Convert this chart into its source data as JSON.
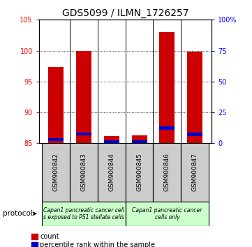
{
  "title": "GDS5099 / ILMN_1726257",
  "samples": [
    "GSM900842",
    "GSM900843",
    "GSM900844",
    "GSM900845",
    "GSM900846",
    "GSM900847"
  ],
  "count_values": [
    97.4,
    100.0,
    86.2,
    86.3,
    103.0,
    99.8
  ],
  "percentile_values": [
    85.6,
    86.5,
    85.2,
    85.2,
    87.5,
    86.4
  ],
  "ylim": [
    85,
    105
  ],
  "yticks": [
    85,
    90,
    95,
    100,
    105
  ],
  "right_yticks": [
    0,
    25,
    50,
    75,
    100
  ],
  "right_ytick_labels": [
    "0",
    "25",
    "50",
    "75",
    "100%"
  ],
  "bar_color_red": "#cc0000",
  "bar_color_blue": "#0000cc",
  "group1_label": "Capan1 pancreatic cancer cell\ns exposed to PS1 stellate cells",
  "group2_label": "Capan1 pancreatic cancer\ncells only",
  "group1_color": "#ccffcc",
  "group2_color": "#ccffcc",
  "gray_box_color": "#cccccc",
  "protocol_label": "protocol",
  "legend_count_label": "count",
  "legend_pct_label": "percentile rank within the sample",
  "title_fontsize": 10,
  "tick_fontsize": 7,
  "sample_fontsize": 6.5,
  "legend_fontsize": 7,
  "group_label_fontsize": 5.5
}
